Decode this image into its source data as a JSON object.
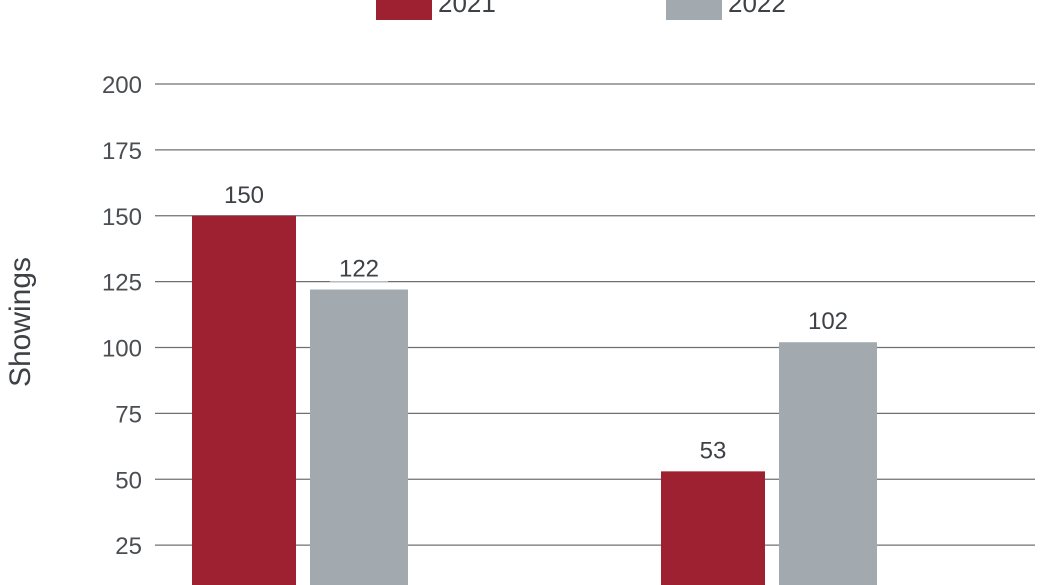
{
  "chart_data": {
    "type": "bar",
    "title": "",
    "xlabel": "",
    "ylabel": "Showings",
    "ylim": [
      0,
      200
    ],
    "yticks": [
      25,
      50,
      75,
      100,
      125,
      150,
      175,
      200
    ],
    "grid": true,
    "legend": "top",
    "categories": [
      "",
      ""
    ],
    "series": [
      {
        "name": "2021",
        "color": "#9e2132",
        "values": [
          150,
          53
        ]
      },
      {
        "name": "2022",
        "color": "#a2aaaf",
        "values": [
          122,
          102
        ]
      }
    ]
  }
}
